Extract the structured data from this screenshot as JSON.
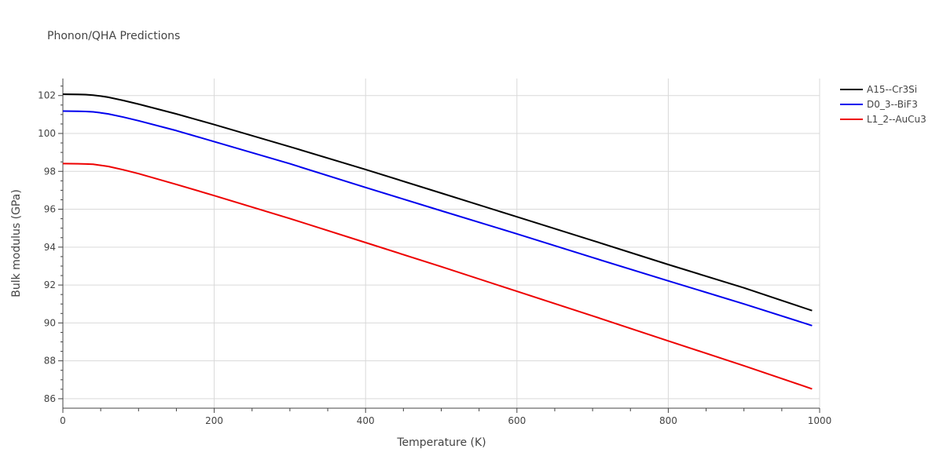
{
  "chart_data": {
    "type": "line",
    "title": "Phonon/QHA Predictions",
    "xlabel": "Temperature (K)",
    "ylabel": "Bulk modulus (GPa)",
    "xlim": [
      0,
      1000
    ],
    "ylim": [
      85.5,
      102.9
    ],
    "xticks": [
      0,
      200,
      400,
      600,
      800,
      1000
    ],
    "yticks": [
      86,
      88,
      90,
      92,
      94,
      96,
      98,
      100,
      102
    ],
    "grid": true,
    "legend_position": "top-right",
    "series": [
      {
        "name": "A15--Cr3Si",
        "color": "#000000",
        "x": [
          0,
          20,
          30,
          40,
          50,
          60,
          80,
          100,
          150,
          200,
          300,
          400,
          500,
          600,
          700,
          800,
          900,
          990
        ],
        "y": [
          102.07,
          102.06,
          102.05,
          102.02,
          101.97,
          101.91,
          101.74,
          101.55,
          101.03,
          100.47,
          99.3,
          98.1,
          96.85,
          95.6,
          94.35,
          93.08,
          91.85,
          90.65
        ]
      },
      {
        "name": "D0_3--BiF3",
        "color": "#0000ee",
        "x": [
          0,
          20,
          30,
          40,
          50,
          60,
          80,
          100,
          150,
          200,
          300,
          400,
          500,
          600,
          700,
          800,
          900,
          990
        ],
        "y": [
          101.18,
          101.17,
          101.16,
          101.14,
          101.09,
          101.03,
          100.86,
          100.67,
          100.15,
          99.57,
          98.4,
          97.15,
          95.92,
          94.7,
          93.45,
          92.22,
          91.0,
          89.86
        ]
      },
      {
        "name": "L1_2--AuCu3",
        "color": "#ee0000",
        "x": [
          0,
          20,
          30,
          40,
          50,
          60,
          80,
          100,
          150,
          200,
          300,
          400,
          500,
          600,
          700,
          800,
          900,
          990
        ],
        "y": [
          98.41,
          98.4,
          98.39,
          98.37,
          98.32,
          98.26,
          98.08,
          97.88,
          97.31,
          96.72,
          95.51,
          94.24,
          92.97,
          91.67,
          90.37,
          89.05,
          87.74,
          86.52
        ]
      }
    ]
  }
}
